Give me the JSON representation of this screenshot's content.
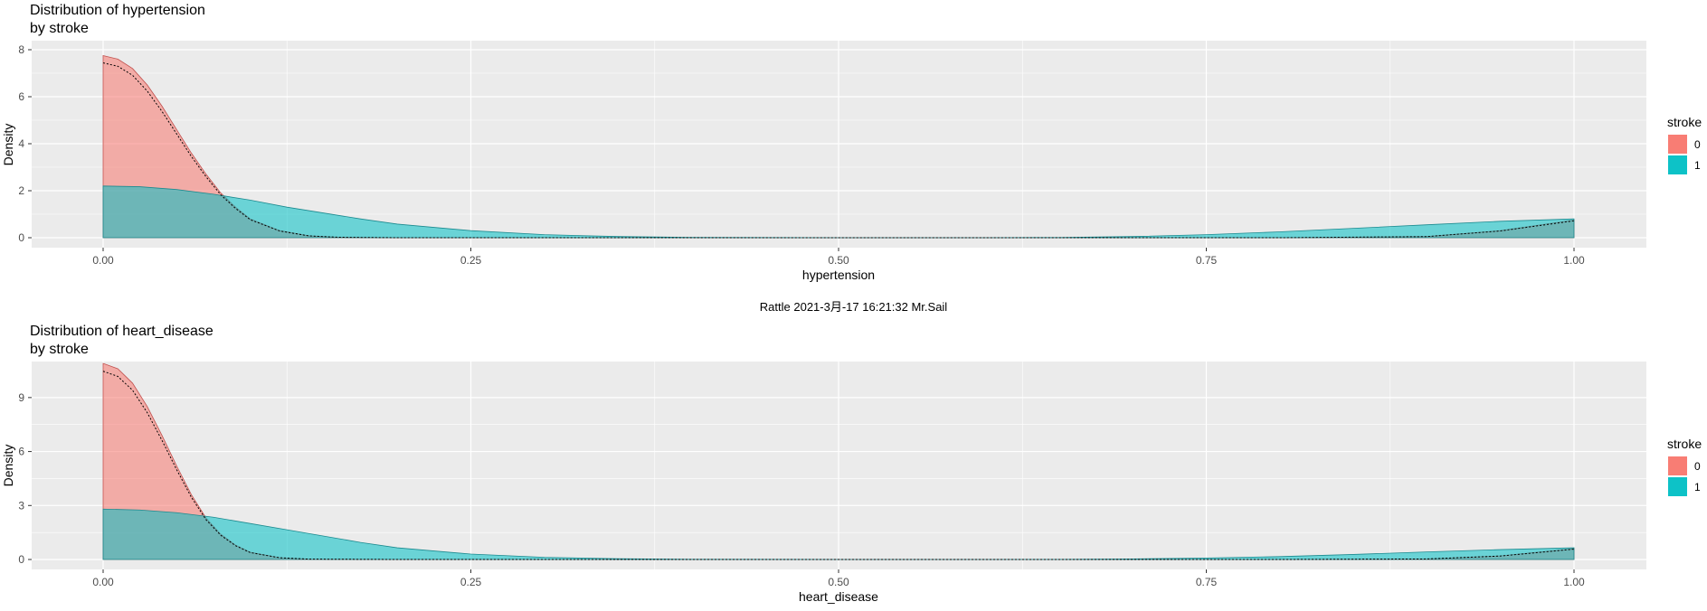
{
  "footer": "Rattle 2021-3月-17 16:21:32 Mr.Sail",
  "colors": {
    "panel_bg": "#EBEBEB",
    "grid": "#FFFFFF",
    "stroke0": "#F8766D",
    "stroke1": "#00BFC4"
  },
  "chart_data": [
    {
      "type": "area",
      "title": "Distribution of hypertension\nby stroke",
      "xlabel": "hypertension",
      "ylabel": "Density",
      "xlim": [
        0,
        1
      ],
      "ylim": [
        0,
        8
      ],
      "xticks": [
        "0.00",
        "0.25",
        "0.50",
        "0.75",
        "1.00"
      ],
      "xtick_values": [
        0,
        0.25,
        0.5,
        0.75,
        1
      ],
      "yticks": [
        "0",
        "2",
        "4",
        "6",
        "8"
      ],
      "ytick_values": [
        0,
        2,
        4,
        6,
        8
      ],
      "legend": {
        "title": "stroke",
        "position": "right",
        "entries": [
          "0",
          "1"
        ]
      },
      "grid": true,
      "series": [
        {
          "name": "0",
          "x": [
            0,
            0.01,
            0.02,
            0.03,
            0.04,
            0.05,
            0.06,
            0.07,
            0.08,
            0.09,
            0.1,
            0.12,
            0.14,
            0.16,
            0.2,
            0.5,
            0.8,
            0.9,
            0.95,
            1.0
          ],
          "y": [
            7.75,
            7.6,
            7.2,
            6.5,
            5.6,
            4.6,
            3.6,
            2.7,
            1.9,
            1.3,
            0.8,
            0.3,
            0.08,
            0.02,
            0,
            0,
            0,
            0.05,
            0.3,
            0.75
          ]
        },
        {
          "name": "1",
          "x": [
            0,
            0.025,
            0.05,
            0.075,
            0.1,
            0.125,
            0.15,
            0.175,
            0.2,
            0.25,
            0.3,
            0.35,
            0.4,
            0.5,
            0.6,
            0.65,
            0.7,
            0.75,
            0.8,
            0.85,
            0.9,
            0.95,
            1.0
          ],
          "y": [
            2.2,
            2.17,
            2.05,
            1.85,
            1.6,
            1.3,
            1.05,
            0.8,
            0.58,
            0.3,
            0.13,
            0.05,
            0.015,
            0,
            0,
            0.01,
            0.05,
            0.13,
            0.25,
            0.4,
            0.55,
            0.7,
            0.8
          ]
        }
      ]
    },
    {
      "type": "area",
      "title": "Distribution of heart_disease\nby stroke",
      "xlabel": "heart_disease",
      "ylabel": "Density",
      "xlim": [
        0,
        1
      ],
      "ylim": [
        0,
        10.5
      ],
      "xticks": [
        "0.00",
        "0.25",
        "0.50",
        "0.75",
        "1.00"
      ],
      "xtick_values": [
        0,
        0.25,
        0.5,
        0.75,
        1
      ],
      "yticks": [
        "0",
        "3",
        "6",
        "9"
      ],
      "ytick_values": [
        0,
        3,
        6,
        9
      ],
      "legend": {
        "title": "stroke",
        "position": "right",
        "entries": [
          "0",
          "1"
        ]
      },
      "grid": true,
      "series": [
        {
          "name": "0",
          "x": [
            0,
            0.01,
            0.02,
            0.03,
            0.04,
            0.05,
            0.06,
            0.07,
            0.08,
            0.09,
            0.1,
            0.12,
            0.14,
            0.2,
            0.5,
            0.8,
            0.9,
            0.95,
            1.0
          ],
          "y": [
            10.9,
            10.6,
            9.8,
            8.5,
            6.9,
            5.2,
            3.6,
            2.3,
            1.4,
            0.8,
            0.4,
            0.1,
            0.02,
            0,
            0,
            0,
            0.03,
            0.2,
            0.6
          ]
        },
        {
          "name": "1",
          "x": [
            0,
            0.025,
            0.05,
            0.075,
            0.1,
            0.125,
            0.15,
            0.175,
            0.2,
            0.25,
            0.3,
            0.35,
            0.4,
            0.5,
            0.6,
            0.65,
            0.7,
            0.75,
            0.8,
            0.85,
            0.9,
            0.95,
            1.0
          ],
          "y": [
            2.8,
            2.75,
            2.6,
            2.35,
            2.0,
            1.65,
            1.3,
            0.95,
            0.65,
            0.3,
            0.12,
            0.04,
            0.01,
            0,
            0,
            0.005,
            0.03,
            0.08,
            0.16,
            0.28,
            0.42,
            0.55,
            0.65
          ]
        }
      ]
    }
  ]
}
